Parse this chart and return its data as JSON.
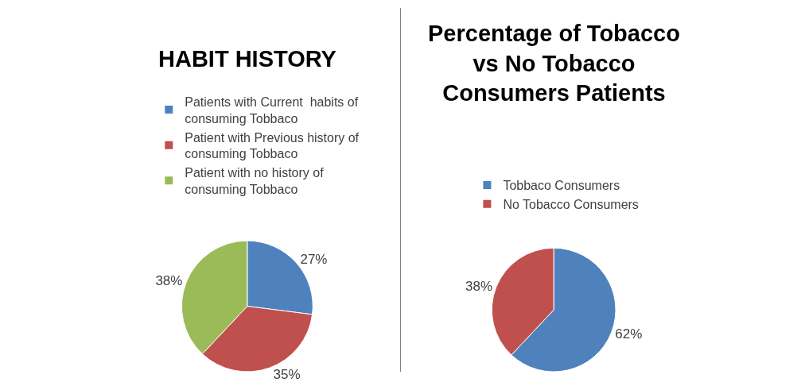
{
  "chart_data": [
    {
      "type": "pie",
      "title": "HABIT HISTORY",
      "categories": [
        "Patients with Current  habits of consuming Tobbaco",
        "Patient with Previous history of consuming Tobbaco",
        "Patient with no history of consuming Tobbaco"
      ],
      "values": [
        27,
        35,
        38
      ],
      "value_labels": [
        "27%",
        "35%",
        "38%"
      ],
      "colors": [
        "#4f81bd",
        "#c0504d",
        "#9bbb59"
      ],
      "legend": "top"
    },
    {
      "type": "pie",
      "title": "Percentage of Tobacco vs No Tobacco Consumers Patients",
      "categories": [
        "Tobbaco Consumers",
        "No Tobacco Consumers"
      ],
      "values": [
        62,
        38
      ],
      "value_labels": [
        "62%",
        "38%"
      ],
      "colors": [
        "#4f81bd",
        "#c0504d"
      ],
      "legend": "top"
    }
  ]
}
